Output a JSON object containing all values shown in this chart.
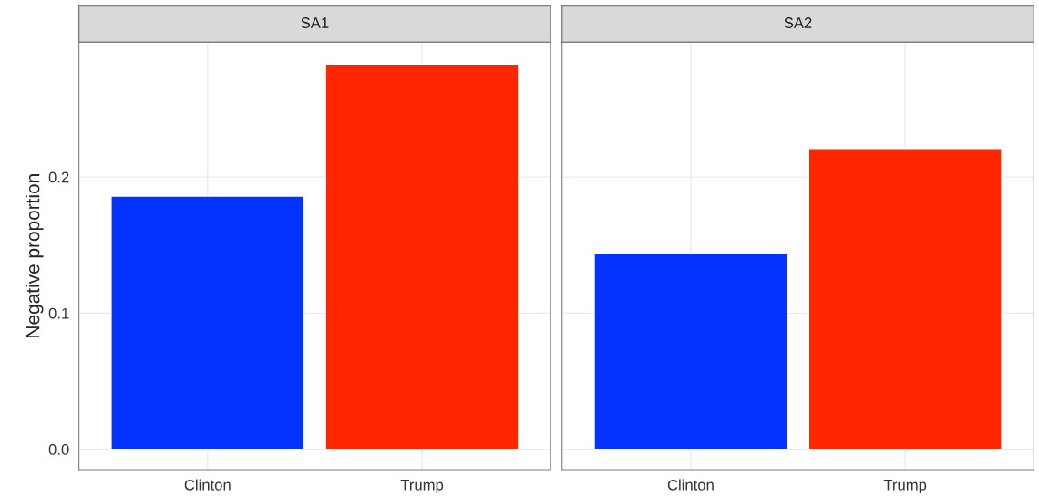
{
  "chart_data": [
    {
      "type": "bar",
      "title": "SA1",
      "ylabel": "Negative proportion",
      "categories": [
        "Clinton",
        "Trump"
      ],
      "values": [
        0.186,
        0.283
      ],
      "colors": [
        "#0432ff",
        "#ff2600"
      ],
      "ylim": [
        -0.015,
        0.299
      ],
      "yticks": [
        {
          "value": 0,
          "label": "0.0"
        },
        {
          "value": 0.1,
          "label": "0.1"
        },
        {
          "value": 0.2,
          "label": "0.2"
        }
      ],
      "grid": true
    },
    {
      "type": "bar",
      "title": "SA2",
      "categories": [
        "Clinton",
        "Trump"
      ],
      "values": [
        0.144,
        0.221
      ],
      "colors": [
        "#0432ff",
        "#ff2600"
      ],
      "ylim": [
        -0.015,
        0.299
      ],
      "yticks": [
        {
          "value": 0,
          "label": null
        },
        {
          "value": 0.1,
          "label": null
        },
        {
          "value": 0.2,
          "label": null
        }
      ],
      "grid": true,
      "tick_labels": "x"
    }
  ]
}
